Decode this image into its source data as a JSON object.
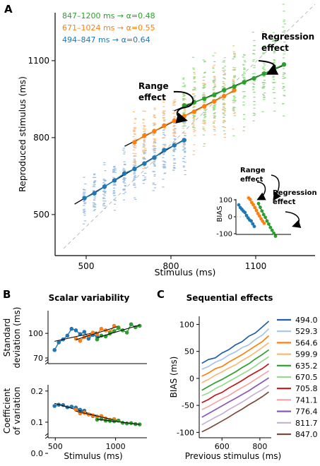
{
  "chart_data": [
    {
      "panel": "A",
      "type": "scatter",
      "title": "",
      "xlabel": "Stimulus (ms)",
      "ylabel": "Reproduced stimulus (ms)",
      "xlim": [
        390,
        1310
      ],
      "ylim": [
        340,
        1320
      ],
      "xticks": [
        "500",
        "800",
        "1100"
      ],
      "yticks": [
        "500",
        "800",
        "1100"
      ],
      "identity_line": true,
      "legend": [
        {
          "text": "847–1200 ms → α=0.48",
          "color": "#2ca02c"
        },
        {
          "text": "671–1024 ms → α=0.55",
          "color": "#ff7f0e"
        },
        {
          "text": "494–847 ms → α=0.64",
          "color": "#1f77b4"
        }
      ],
      "annotations": [
        {
          "text": "Regression\neffect"
        },
        {
          "text": "Range\neffect"
        }
      ],
      "series": [
        {
          "name": "494–847 ms",
          "color": "#1f77b4",
          "raw_color": "#9fbde0",
          "x": [
            494,
            529,
            565,
            600,
            635,
            671,
            706,
            741,
            776,
            812,
            847
          ],
          "y": [
            564,
            583,
            609,
            633,
            660,
            678,
            699,
            722,
            751,
            770,
            790
          ]
        },
        {
          "name": "671–1024 ms",
          "color": "#ff7f0e",
          "raw_color": "#f5c28e",
          "x": [
            671,
            706,
            741,
            776,
            812,
            847,
            882,
            918,
            953,
            988,
            1024
          ],
          "y": [
            782,
            808,
            825,
            847,
            866,
            884,
            901,
            922,
            941,
            962,
            985
          ]
        },
        {
          "name": "847–1200 ms",
          "color": "#2ca02c",
          "raw_color": "#98d98e",
          "x": [
            847,
            882,
            918,
            953,
            988,
            1024,
            1059,
            1094,
            1129,
            1165,
            1200
          ],
          "y": [
            925,
            938,
            952,
            966,
            985,
            999,
            1016,
            1031,
            1049,
            1068,
            1085
          ]
        }
      ]
    },
    {
      "panel": "A-inset",
      "type": "scatter",
      "xlabel": "",
      "ylabel": "BIAS",
      "ylim": [
        -120,
        120
      ],
      "yticks": [
        "100",
        "0",
        "-100"
      ],
      "annotations": [
        {
          "text": "Range\neffect"
        },
        {
          "text": "Regression\neffect"
        }
      ]
    },
    {
      "panel": "B",
      "type": "scatter",
      "title": "Scalar variability",
      "xlabel": "Stimulus (ms)",
      "subplots": [
        {
          "ylabel": "Standard\ndeviation (ms)",
          "ylim": [
            60,
            130
          ],
          "yticks": [
            "100",
            "70"
          ],
          "series": [
            {
              "name": "494–847 ms",
              "color": "#1f77b4",
              "x": [
                494,
                529,
                565,
                600,
                635,
                671,
                706,
                741,
                776,
                812,
                847
              ],
              "y": [
                78,
                88,
                92,
                97,
                106,
                104,
                99,
                102,
                93,
                98,
                96
              ]
            },
            {
              "name": "671–1024 ms",
              "color": "#ff7f0e",
              "x": [
                671,
                706,
                741,
                776,
                812,
                847,
                882,
                918,
                953,
                988,
                1024
              ],
              "y": [
                93,
                90,
                95,
                97,
                101,
                99,
                106,
                104,
                102,
                110,
                108
              ]
            },
            {
              "name": "847–1200 ms",
              "color": "#2ca02c",
              "x": [
                847,
                882,
                918,
                953,
                988,
                1024,
                1059,
                1094,
                1129,
                1165,
                1200
              ],
              "y": [
                92,
                97,
                96,
                100,
                103,
                107,
                104,
                101,
                112,
                108,
                110
              ]
            }
          ]
        },
        {
          "ylabel": "Coefficient\nof variation",
          "ylim": [
            0.05,
            0.22
          ],
          "yticks": [
            "0.2",
            "0.1",
            "0.0"
          ],
          "series": [
            {
              "name": "494–847 ms",
              "color": "#1f77b4",
              "x": [
                494,
                529,
                565,
                600,
                635,
                671,
                706,
                741,
                776,
                812,
                847
              ],
              "y": [
                0.152,
                0.156,
                0.155,
                0.148,
                0.15,
                0.147,
                0.14,
                0.137,
                0.125,
                0.12,
                0.118
              ]
            },
            {
              "name": "671–1024 ms",
              "color": "#ff7f0e",
              "x": [
                671,
                706,
                741,
                776,
                812,
                847,
                882,
                918,
                953,
                988,
                1024
              ],
              "y": [
                0.14,
                0.128,
                0.13,
                0.125,
                0.122,
                0.117,
                0.12,
                0.112,
                0.108,
                0.11,
                0.105
              ]
            },
            {
              "name": "847–1200 ms",
              "color": "#2ca02c",
              "x": [
                847,
                882,
                918,
                953,
                988,
                1024,
                1059,
                1094,
                1129,
                1165,
                1200
              ],
              "y": [
                0.108,
                0.11,
                0.105,
                0.104,
                0.103,
                0.105,
                0.098,
                0.096,
                0.097,
                0.094,
                0.093
              ]
            }
          ]
        }
      ],
      "xlim": [
        440,
        1260
      ],
      "xticks": [
        "500",
        "1000"
      ]
    },
    {
      "panel": "C",
      "type": "line",
      "title": "Sequential effects",
      "xlabel": "Previous stimulus (ms)",
      "ylabel": "BIAS (ms)",
      "xlim": [
        480,
        860
      ],
      "ylim": [
        -110,
        115
      ],
      "xticks": [
        "600",
        "800"
      ],
      "yticks": [
        "100",
        "50",
        "0",
        "-50",
        "-100"
      ],
      "series": [
        {
          "name": "494.0",
          "color": "#1f5fa8",
          "x": [
            494,
            529,
            565,
            600,
            635,
            671,
            706,
            741,
            776,
            812,
            847
          ],
          "y": [
            28,
            35,
            38,
            47,
            53,
            62,
            68,
            78,
            84,
            95,
            106
          ]
        },
        {
          "name": "529.3",
          "color": "#a6c4e8",
          "x": [
            494,
            529,
            565,
            600,
            635,
            671,
            706,
            741,
            776,
            812,
            847
          ],
          "y": [
            17,
            22,
            30,
            35,
            43,
            49,
            57,
            62,
            72,
            80,
            92
          ]
        },
        {
          "name": "564.6",
          "color": "#ff7f0e",
          "x": [
            494,
            529,
            565,
            600,
            635,
            671,
            706,
            741,
            776,
            812,
            847
          ],
          "y": [
            4,
            10,
            18,
            22,
            30,
            37,
            44,
            52,
            60,
            68,
            79
          ]
        },
        {
          "name": "599.9",
          "color": "#f8b878",
          "x": [
            494,
            529,
            565,
            600,
            635,
            671,
            706,
            741,
            776,
            812,
            847
          ],
          "y": [
            -8,
            -2,
            6,
            12,
            19,
            25,
            33,
            40,
            48,
            57,
            66
          ]
        },
        {
          "name": "635.2",
          "color": "#2ca02c",
          "x": [
            494,
            529,
            565,
            600,
            635,
            671,
            706,
            741,
            776,
            812,
            847
          ],
          "y": [
            -22,
            -15,
            -8,
            -2,
            5,
            12,
            20,
            27,
            36,
            44,
            53
          ]
        },
        {
          "name": "670.5",
          "color": "#98d98e",
          "x": [
            494,
            529,
            565,
            600,
            635,
            671,
            706,
            741,
            776,
            812,
            847
          ],
          "y": [
            -32,
            -27,
            -19,
            -13,
            -6,
            1,
            8,
            15,
            23,
            32,
            40
          ]
        },
        {
          "name": "705.8",
          "color": "#c4161c",
          "x": [
            494,
            529,
            565,
            600,
            635,
            671,
            706,
            741,
            776,
            812,
            847
          ],
          "y": [
            -45,
            -39,
            -31,
            -26,
            -18,
            -11,
            -4,
            4,
            11,
            18,
            27
          ]
        },
        {
          "name": "741.1",
          "color": "#f4a4a4",
          "x": [
            494,
            529,
            565,
            600,
            635,
            671,
            706,
            741,
            776,
            812,
            847
          ],
          "y": [
            -58,
            -52,
            -45,
            -38,
            -32,
            -24,
            -17,
            -10,
            -2,
            6,
            14
          ]
        },
        {
          "name": "776.4",
          "color": "#8a58b8",
          "x": [
            494,
            529,
            565,
            600,
            635,
            671,
            706,
            741,
            776,
            812,
            847
          ],
          "y": [
            -72,
            -65,
            -58,
            -51,
            -44,
            -37,
            -30,
            -23,
            -15,
            -7,
            1
          ]
        },
        {
          "name": "811.7",
          "color": "#c5b0d5",
          "x": [
            494,
            529,
            565,
            600,
            635,
            671,
            706,
            741,
            776,
            812,
            847
          ],
          "y": [
            -86,
            -79,
            -72,
            -66,
            -58,
            -51,
            -44,
            -36,
            -28,
            -21,
            -13
          ]
        },
        {
          "name": "847.0",
          "color": "#7a4a3a",
          "x": [
            494,
            529,
            565,
            600,
            635,
            671,
            706,
            741,
            776,
            812,
            847
          ],
          "y": [
            -99,
            -93,
            -86,
            -79,
            -72,
            -64,
            -57,
            -49,
            -42,
            -34,
            -25
          ]
        }
      ]
    }
  ],
  "panel_labels": {
    "a": "A",
    "b": "B",
    "c": "C"
  }
}
